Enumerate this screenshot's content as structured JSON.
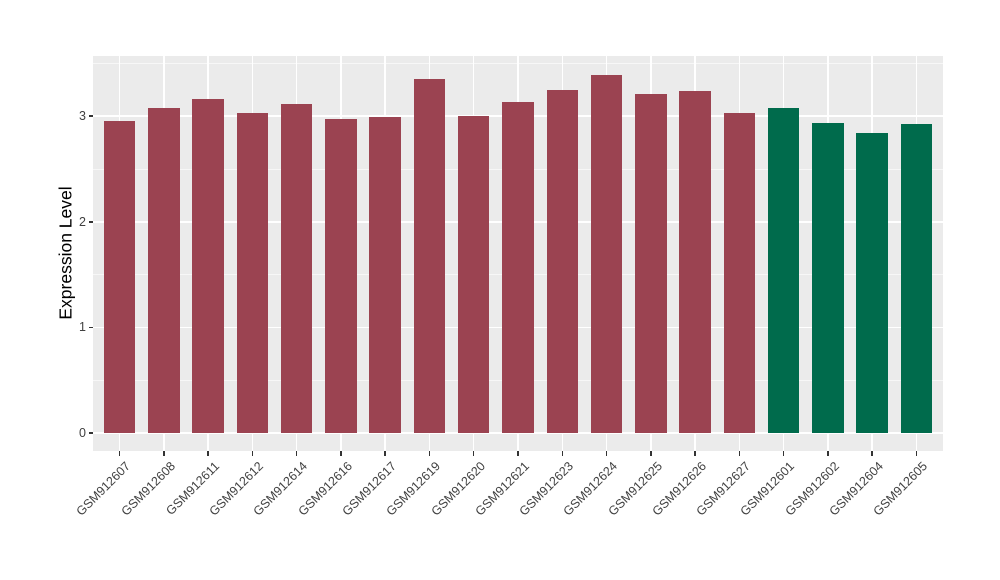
{
  "chart_data": {
    "type": "bar",
    "title": "",
    "xlabel": "",
    "ylabel": "Expression Level",
    "categories": [
      "GSM912607",
      "GSM912608",
      "GSM912611",
      "GSM912612",
      "GSM912614",
      "GSM912616",
      "GSM912617",
      "GSM912619",
      "GSM912620",
      "GSM912621",
      "GSM912623",
      "GSM912624",
      "GSM912625",
      "GSM912626",
      "GSM912627",
      "GSM912601",
      "GSM912602",
      "GSM912604",
      "GSM912605"
    ],
    "values": [
      2.95,
      3.08,
      3.16,
      3.03,
      3.12,
      2.97,
      2.99,
      3.35,
      3.0,
      3.13,
      3.25,
      3.39,
      3.21,
      3.24,
      3.03,
      3.08,
      2.94,
      2.84,
      2.93
    ],
    "groups": [
      0,
      0,
      0,
      0,
      0,
      0,
      0,
      0,
      0,
      0,
      0,
      0,
      0,
      0,
      0,
      1,
      1,
      1,
      1
    ],
    "group_colors": [
      "#9B4351",
      "#006B4C"
    ],
    "yticks": [
      0,
      1,
      2,
      3
    ],
    "ytick_labels": [
      "0",
      "1",
      "2",
      "3"
    ],
    "yminor": [
      0.5,
      1.5,
      2.5,
      3.5
    ],
    "ylim": [
      -0.17,
      3.57
    ],
    "x_expand": 0.6,
    "bar_rel_width": 0.71,
    "grid": "on",
    "legend": "none",
    "colors": {
      "panel_bg": "#EBEBEB",
      "grid_major": "#FFFFFF",
      "grid_minor": "#FFFFFF",
      "tick": "#333333",
      "axis_text": "#404040",
      "axis_title": "#000000",
      "figure_bg": "#FFFFFF"
    }
  }
}
